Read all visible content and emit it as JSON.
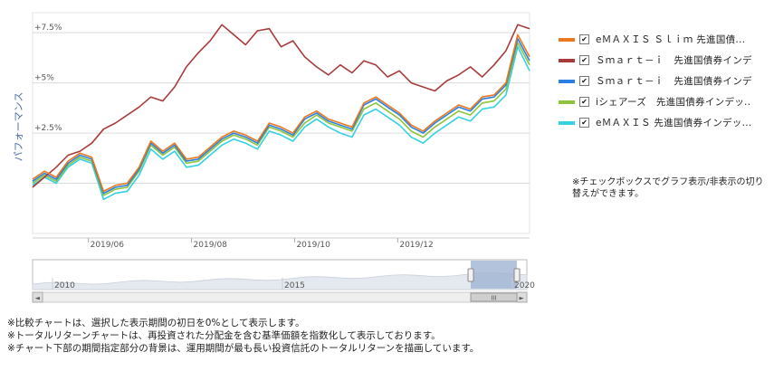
{
  "colors": {
    "emaxis_slim": "#e9781f",
    "smart_i_a": "#a83a3a",
    "smart_i_b": "#2a7fe0",
    "ishares": "#8dc43a",
    "emaxis": "#33d0e6"
  },
  "legend": [
    {
      "label": "eＭＡＸＩＳ Ｓｌｉｍ 先進国債...",
      "color": "#e9781f",
      "checked": true
    },
    {
      "label": "Ｓｍａｒｔ－ｉ　先進国債券インデ...",
      "color": "#a83a3a",
      "checked": true
    },
    {
      "label": "Ｓｍａｒｔ－ｉ　先進国債券インデ...",
      "color": "#2a7fe0",
      "checked": true
    },
    {
      "label": "iシェアーズ　先進国債券インデッ...",
      "color": "#8dc43a",
      "checked": true
    },
    {
      "label": "eＭＡＸＩＳ 先進国債券インデッ...",
      "color": "#33d0e6",
      "checked": true
    }
  ],
  "note_right": "※チェックボックスでグラフ表示/非表示の切り替えができます。",
  "notes_bottom": [
    "※比較チャートは、選択した表示期間の初日を0%として表示します。",
    "※トータルリターンチャートは、再投資された分配金を含む基準価額を指数化して表示しております。",
    "※チャート下部の期間指定部分の背景は、運用期間が最も長い投資信託のトータルリターンを描画しています。"
  ],
  "navigator": {
    "year_labels": [
      {
        "year": "2010",
        "label": "2010"
      },
      {
        "year": "2015",
        "label": "2015"
      },
      {
        "year": "2020",
        "label": "2020"
      }
    ],
    "scroll_left": "◄",
    "scroll_right": "►",
    "thumb_grip": "III"
  },
  "chart_data": {
    "type": "line",
    "ylabel": "パフォーマンス",
    "yticks": [
      {
        "value": 2.5,
        "label": "+2.5%"
      },
      {
        "value": 5,
        "label": "+5%"
      },
      {
        "value": 7.5,
        "label": "+7.5%"
      }
    ],
    "ylim": [
      -2.5,
      8.5
    ],
    "xlim": [
      "2019-04-29",
      "2020-02-17"
    ],
    "xticks": [
      {
        "date": "2019-06-01",
        "label": "2019/06"
      },
      {
        "date": "2019-08-01",
        "label": "2019/08"
      },
      {
        "date": "2019-10-01",
        "label": "2019/10"
      },
      {
        "date": "2019-12-01",
        "label": "2019/12"
      }
    ],
    "grid": true,
    "legend_position": "right",
    "series": [
      {
        "name": "eＭＡＸＩＳ Ｓｌｉｍ 先進国債...",
        "color": "#e9781f",
        "x": [
          "2019-04-29",
          "2019-05-06",
          "2019-05-13",
          "2019-05-20",
          "2019-05-27",
          "2019-06-03",
          "2019-06-10",
          "2019-06-17",
          "2019-06-24",
          "2019-07-01",
          "2019-07-08",
          "2019-07-15",
          "2019-07-22",
          "2019-07-29",
          "2019-08-05",
          "2019-08-12",
          "2019-08-19",
          "2019-08-26",
          "2019-09-02",
          "2019-09-09",
          "2019-09-16",
          "2019-09-23",
          "2019-09-30",
          "2019-10-07",
          "2019-10-14",
          "2019-10-21",
          "2019-10-28",
          "2019-11-04",
          "2019-11-11",
          "2019-11-18",
          "2019-11-25",
          "2019-12-02",
          "2019-12-09",
          "2019-12-16",
          "2019-12-23",
          "2019-12-30",
          "2020-01-06",
          "2020-01-13",
          "2020-01-20",
          "2020-01-27",
          "2020-02-03",
          "2020-02-10",
          "2020-02-17"
        ],
        "values": [
          0.2,
          0.6,
          0.3,
          1.1,
          1.5,
          1.3,
          -0.4,
          -0.1,
          0.0,
          0.8,
          2.1,
          1.6,
          2.0,
          1.2,
          1.3,
          1.8,
          2.3,
          2.6,
          2.4,
          2.1,
          3.0,
          2.8,
          2.5,
          3.3,
          3.6,
          3.2,
          3.0,
          2.8,
          4.0,
          4.3,
          3.9,
          3.5,
          2.9,
          2.6,
          3.1,
          3.5,
          3.9,
          3.7,
          4.3,
          4.4,
          5.0,
          7.4,
          6.3
        ]
      },
      {
        "name": "Ｓｍａｒｔ－ｉ　先進国債券インデ...",
        "color": "#a83a3a",
        "x": [
          "2019-04-29",
          "2019-05-06",
          "2019-05-13",
          "2019-05-20",
          "2019-05-27",
          "2019-06-03",
          "2019-06-10",
          "2019-06-17",
          "2019-06-24",
          "2019-07-01",
          "2019-07-08",
          "2019-07-15",
          "2019-07-22",
          "2019-07-29",
          "2019-08-05",
          "2019-08-12",
          "2019-08-19",
          "2019-08-26",
          "2019-09-02",
          "2019-09-09",
          "2019-09-16",
          "2019-09-23",
          "2019-09-30",
          "2019-10-07",
          "2019-10-14",
          "2019-10-21",
          "2019-10-28",
          "2019-11-04",
          "2019-11-11",
          "2019-11-18",
          "2019-11-25",
          "2019-12-02",
          "2019-12-09",
          "2019-12-16",
          "2019-12-23",
          "2019-12-30",
          "2020-01-06",
          "2020-01-13",
          "2020-01-20",
          "2020-01-27",
          "2020-02-03",
          "2020-02-10",
          "2020-02-17"
        ],
        "values": [
          -0.2,
          0.3,
          0.8,
          1.4,
          1.6,
          2.0,
          2.7,
          3.0,
          3.4,
          3.8,
          4.3,
          4.1,
          4.8,
          5.8,
          6.5,
          7.1,
          7.9,
          7.4,
          6.9,
          7.6,
          7.7,
          6.8,
          7.1,
          6.3,
          5.8,
          5.4,
          5.9,
          5.5,
          6.1,
          5.9,
          5.3,
          5.6,
          5.0,
          4.8,
          4.6,
          5.1,
          5.4,
          5.8,
          5.3,
          5.9,
          6.6,
          7.9,
          7.7
        ]
      },
      {
        "name": "Ｓｍａｒｔ－ｉ　先進国債券インデ...",
        "color": "#2a7fe0",
        "x": [
          "2019-04-29",
          "2019-05-06",
          "2019-05-13",
          "2019-05-20",
          "2019-05-27",
          "2019-06-03",
          "2019-06-10",
          "2019-06-17",
          "2019-06-24",
          "2019-07-01",
          "2019-07-08",
          "2019-07-15",
          "2019-07-22",
          "2019-07-29",
          "2019-08-05",
          "2019-08-12",
          "2019-08-19",
          "2019-08-26",
          "2019-09-02",
          "2019-09-09",
          "2019-09-16",
          "2019-09-23",
          "2019-09-30",
          "2019-10-07",
          "2019-10-14",
          "2019-10-21",
          "2019-10-28",
          "2019-11-04",
          "2019-11-11",
          "2019-11-18",
          "2019-11-25",
          "2019-12-02",
          "2019-12-09",
          "2019-12-16",
          "2019-12-23",
          "2019-12-30",
          "2020-01-06",
          "2020-01-13",
          "2020-01-20",
          "2020-01-27",
          "2020-02-03",
          "2020-02-10",
          "2020-02-17"
        ],
        "values": [
          0.1,
          0.5,
          0.2,
          1.0,
          1.4,
          1.2,
          -0.5,
          -0.2,
          -0.1,
          0.7,
          2.0,
          1.5,
          1.9,
          1.1,
          1.2,
          1.7,
          2.2,
          2.5,
          2.3,
          2.0,
          2.9,
          2.7,
          2.4,
          3.2,
          3.5,
          3.1,
          2.9,
          2.7,
          3.9,
          4.2,
          3.8,
          3.4,
          2.8,
          2.5,
          3.0,
          3.4,
          3.8,
          3.6,
          4.2,
          4.3,
          4.9,
          7.2,
          6.1
        ]
      },
      {
        "name": "iシェアーズ　先進国債券インデッ...",
        "color": "#8dc43a",
        "x": [
          "2019-04-29",
          "2019-05-06",
          "2019-05-13",
          "2019-05-20",
          "2019-05-27",
          "2019-06-03",
          "2019-06-10",
          "2019-06-17",
          "2019-06-24",
          "2019-07-01",
          "2019-07-08",
          "2019-07-15",
          "2019-07-22",
          "2019-07-29",
          "2019-08-05",
          "2019-08-12",
          "2019-08-19",
          "2019-08-26",
          "2019-09-02",
          "2019-09-09",
          "2019-09-16",
          "2019-09-23",
          "2019-09-30",
          "2019-10-07",
          "2019-10-14",
          "2019-10-21",
          "2019-10-28",
          "2019-11-04",
          "2019-11-11",
          "2019-11-18",
          "2019-11-25",
          "2019-12-02",
          "2019-12-09",
          "2019-12-16",
          "2019-12-23",
          "2019-12-30",
          "2020-01-06",
          "2020-01-13",
          "2020-01-20",
          "2020-01-27",
          "2020-02-03",
          "2020-02-10",
          "2020-02-17"
        ],
        "values": [
          0.0,
          0.4,
          0.1,
          0.9,
          1.3,
          1.1,
          -0.6,
          -0.3,
          -0.2,
          0.6,
          1.9,
          1.4,
          1.8,
          1.0,
          1.1,
          1.6,
          2.1,
          2.4,
          2.2,
          1.9,
          2.8,
          2.6,
          2.3,
          3.0,
          3.4,
          3.0,
          2.8,
          2.6,
          3.7,
          4.0,
          3.6,
          3.2,
          2.6,
          2.3,
          2.8,
          3.2,
          3.6,
          3.4,
          4.0,
          4.1,
          4.7,
          7.0,
          5.9
        ]
      },
      {
        "name": "eＭＡＸＩＳ 先進国債券インデッ...",
        "color": "#33d0e6",
        "x": [
          "2019-04-29",
          "2019-05-06",
          "2019-05-13",
          "2019-05-20",
          "2019-05-27",
          "2019-06-03",
          "2019-06-10",
          "2019-06-17",
          "2019-06-24",
          "2019-07-01",
          "2019-07-08",
          "2019-07-15",
          "2019-07-22",
          "2019-07-29",
          "2019-08-05",
          "2019-08-12",
          "2019-08-19",
          "2019-08-26",
          "2019-09-02",
          "2019-09-09",
          "2019-09-16",
          "2019-09-23",
          "2019-09-30",
          "2019-10-07",
          "2019-10-14",
          "2019-10-21",
          "2019-10-28",
          "2019-11-04",
          "2019-11-11",
          "2019-11-18",
          "2019-11-25",
          "2019-12-02",
          "2019-12-09",
          "2019-12-16",
          "2019-12-23",
          "2019-12-30",
          "2020-01-06",
          "2020-01-13",
          "2020-01-20",
          "2020-01-27",
          "2020-02-03",
          "2020-02-10",
          "2020-02-17"
        ],
        "values": [
          -0.1,
          0.3,
          0.0,
          0.8,
          1.2,
          1.0,
          -0.8,
          -0.5,
          -0.4,
          0.4,
          1.7,
          1.2,
          1.6,
          0.8,
          0.9,
          1.4,
          1.9,
          2.2,
          2.0,
          1.7,
          2.6,
          2.4,
          2.1,
          2.8,
          3.2,
          2.8,
          2.5,
          2.3,
          3.4,
          3.7,
          3.3,
          2.9,
          2.3,
          2.0,
          2.5,
          2.9,
          3.3,
          3.1,
          3.7,
          3.8,
          4.4,
          6.8,
          5.6
        ]
      }
    ]
  }
}
